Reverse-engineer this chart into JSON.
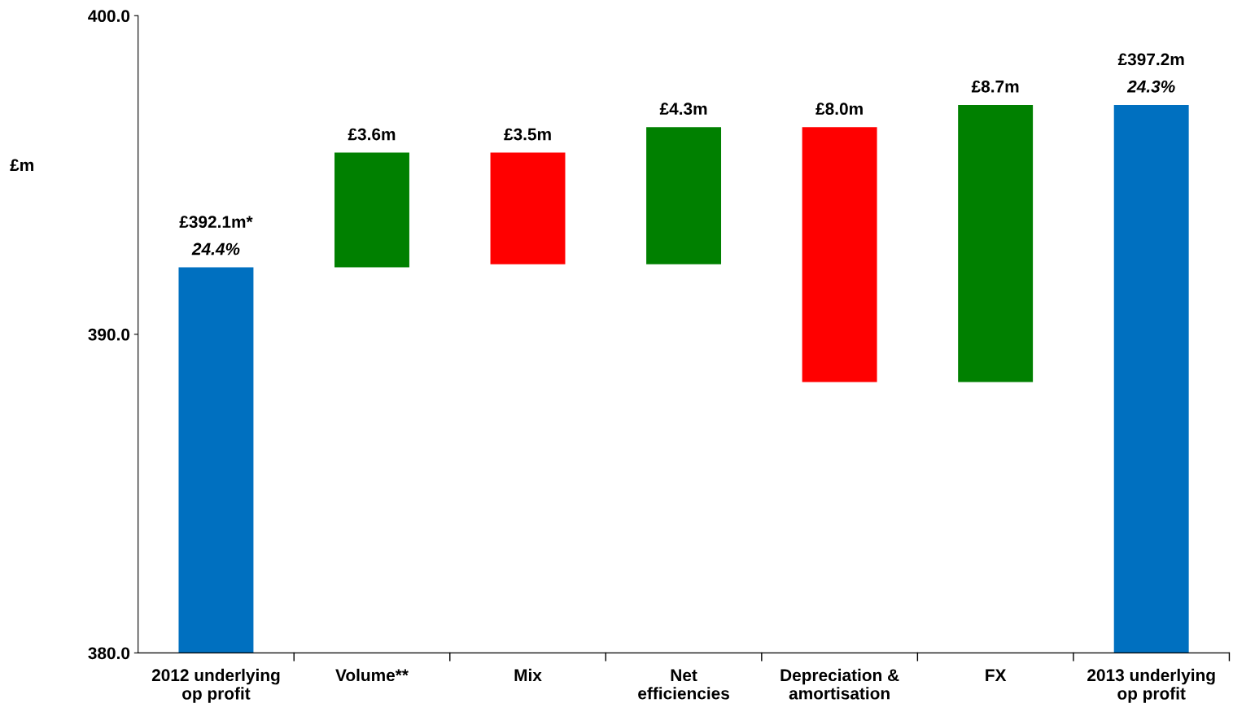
{
  "chart_data": {
    "type": "bar",
    "ylabel": "£m",
    "categories": [
      "2012 underlying op profit",
      "Volume**",
      "Mix",
      "Net efficiencies",
      "Depreciation & amortisation",
      "FX",
      "2013 underlying op profit"
    ],
    "values": [
      392.1,
      3.6,
      3.5,
      4.3,
      8.0,
      8.7,
      397.2
    ],
    "base": [
      0,
      392.1,
      392.2,
      392.2,
      388.5,
      388.5,
      0
    ],
    "colors": [
      "#0070c0",
      "#008000",
      "#ff0000",
      "#008000",
      "#ff0000",
      "#008000",
      "#0070c0"
    ],
    "value_labels": [
      "£392.1m*",
      "£3.6m",
      "£3.5m",
      "£4.3m",
      "£8.0m",
      "£8.7m",
      "£397.2m"
    ],
    "annotations": [
      {
        "text": "24.4%",
        "x": "2012 underlying op profit",
        "y": 392.1
      },
      {
        "text": "24.3%",
        "x": "2013 underlying op profit",
        "y": 397.2
      }
    ],
    "ylim": [
      380,
      400
    ],
    "yticks": [
      {
        "value": 380,
        "label": "380.0"
      },
      {
        "value": 390,
        "label": "390.0"
      },
      {
        "value": 400,
        "label": "400.0"
      }
    ],
    "grid": false
  }
}
